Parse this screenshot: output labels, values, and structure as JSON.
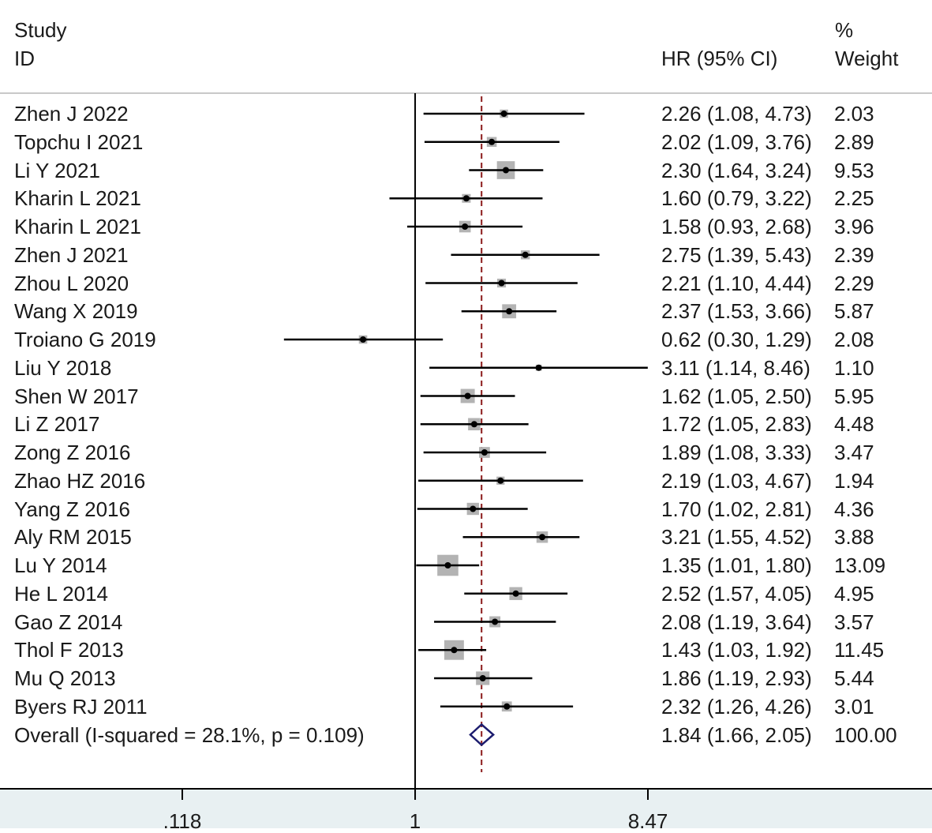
{
  "header": {
    "study_line1": "Study",
    "study_line2": "ID",
    "hr_label": "HR (95% CI)",
    "weight_line1": "%",
    "weight_line2": "Weight"
  },
  "colors": {
    "box": "#b3b3b3",
    "line": "#000000",
    "null_line": "#000000",
    "overall_line": "#8b1a1a",
    "diamond": "#1c1c6e",
    "footer_bg": "#e8f0f2"
  },
  "chart_data": {
    "type": "forest",
    "x_scale": "log",
    "xlim": [
      0.118,
      8.47
    ],
    "null_value": 1,
    "overall_value": 1.84,
    "x_ticks": [
      ".118",
      "1",
      "8.47"
    ],
    "x_tick_values": [
      0.118,
      1,
      8.47
    ],
    "studies": [
      {
        "name": "Zhen J 2022",
        "hr": 2.26,
        "lo": 1.08,
        "hi": 4.73,
        "ci_text": "2.26 (1.08, 4.73)",
        "weight_text": "2.03",
        "weight": 2.03
      },
      {
        "name": "Topchu I 2021",
        "hr": 2.02,
        "lo": 1.09,
        "hi": 3.76,
        "ci_text": "2.02 (1.09, 3.76)",
        "weight_text": "2.89",
        "weight": 2.89
      },
      {
        "name": "Li Y 2021",
        "hr": 2.3,
        "lo": 1.64,
        "hi": 3.24,
        "ci_text": "2.30 (1.64, 3.24)",
        "weight_text": "9.53",
        "weight": 9.53
      },
      {
        "name": "Kharin L 2021",
        "hr": 1.6,
        "lo": 0.79,
        "hi": 3.22,
        "ci_text": "1.60 (0.79, 3.22)",
        "weight_text": "2.25",
        "weight": 2.25
      },
      {
        "name": "Kharin L 2021",
        "hr": 1.58,
        "lo": 0.93,
        "hi": 2.68,
        "ci_text": "1.58 (0.93, 2.68)",
        "weight_text": "3.96",
        "weight": 3.96
      },
      {
        "name": "Zhen J 2021",
        "hr": 2.75,
        "lo": 1.39,
        "hi": 5.43,
        "ci_text": "2.75 (1.39, 5.43)",
        "weight_text": "2.39",
        "weight": 2.39
      },
      {
        "name": "Zhou L 2020",
        "hr": 2.21,
        "lo": 1.1,
        "hi": 4.44,
        "ci_text": "2.21 (1.10, 4.44)",
        "weight_text": "2.29",
        "weight": 2.29
      },
      {
        "name": "Wang X 2019",
        "hr": 2.37,
        "lo": 1.53,
        "hi": 3.66,
        "ci_text": "2.37 (1.53, 3.66)",
        "weight_text": "5.87",
        "weight": 5.87
      },
      {
        "name": "Troiano G 2019",
        "hr": 0.62,
        "lo": 0.3,
        "hi": 1.29,
        "ci_text": "0.62 (0.30, 1.29)",
        "weight_text": "2.08",
        "weight": 2.08
      },
      {
        "name": "Liu Y 2018",
        "hr": 3.11,
        "lo": 1.14,
        "hi": 8.46,
        "ci_text": "3.11 (1.14, 8.46)",
        "weight_text": "1.10",
        "weight": 1.1
      },
      {
        "name": "Shen W 2017",
        "hr": 1.62,
        "lo": 1.05,
        "hi": 2.5,
        "ci_text": "1.62 (1.05, 2.50)",
        "weight_text": "5.95",
        "weight": 5.95
      },
      {
        "name": "Li Z 2017",
        "hr": 1.72,
        "lo": 1.05,
        "hi": 2.83,
        "ci_text": "1.72 (1.05, 2.83)",
        "weight_text": "4.48",
        "weight": 4.48
      },
      {
        "name": "Zong Z 2016",
        "hr": 1.89,
        "lo": 1.08,
        "hi": 3.33,
        "ci_text": "1.89 (1.08, 3.33)",
        "weight_text": "3.47",
        "weight": 3.47
      },
      {
        "name": "Zhao HZ 2016",
        "hr": 2.19,
        "lo": 1.03,
        "hi": 4.67,
        "ci_text": "2.19 (1.03, 4.67)",
        "weight_text": "1.94",
        "weight": 1.94
      },
      {
        "name": "Yang Z 2016",
        "hr": 1.7,
        "lo": 1.02,
        "hi": 2.81,
        "ci_text": "1.70 (1.02, 2.81)",
        "weight_text": "4.36",
        "weight": 4.36
      },
      {
        "name": "Aly RM 2015",
        "hr": 3.21,
        "lo": 1.55,
        "hi": 4.52,
        "ci_text": "3.21 (1.55, 4.52)",
        "weight_text": "3.88",
        "weight": 3.88
      },
      {
        "name": "Lu Y 2014",
        "hr": 1.35,
        "lo": 1.01,
        "hi": 1.8,
        "ci_text": "1.35 (1.01, 1.80)",
        "weight_text": "13.09",
        "weight": 13.09
      },
      {
        "name": "He L 2014",
        "hr": 2.52,
        "lo": 1.57,
        "hi": 4.05,
        "ci_text": "2.52 (1.57, 4.05)",
        "weight_text": "4.95",
        "weight": 4.95
      },
      {
        "name": "Gao Z 2014",
        "hr": 2.08,
        "lo": 1.19,
        "hi": 3.64,
        "ci_text": "2.08 (1.19, 3.64)",
        "weight_text": "3.57",
        "weight": 3.57
      },
      {
        "name": "Thol F 2013",
        "hr": 1.43,
        "lo": 1.03,
        "hi": 1.92,
        "ci_text": "1.43 (1.03, 1.92)",
        "weight_text": "11.45",
        "weight": 11.45
      },
      {
        "name": "Mu Q 2013",
        "hr": 1.86,
        "lo": 1.19,
        "hi": 2.93,
        "ci_text": "1.86 (1.19, 2.93)",
        "weight_text": "5.44",
        "weight": 5.44
      },
      {
        "name": "Byers RJ 2011",
        "hr": 2.32,
        "lo": 1.26,
        "hi": 4.26,
        "ci_text": "2.32 (1.26, 4.26)",
        "weight_text": "3.01",
        "weight": 3.01
      }
    ],
    "overall": {
      "label": "Overall  (I-squared = 28.1%, p = 0.109)",
      "hr": 1.84,
      "lo": 1.66,
      "hi": 2.05,
      "ci_text": "1.84 (1.66, 2.05)",
      "weight_text": "100.00"
    }
  }
}
